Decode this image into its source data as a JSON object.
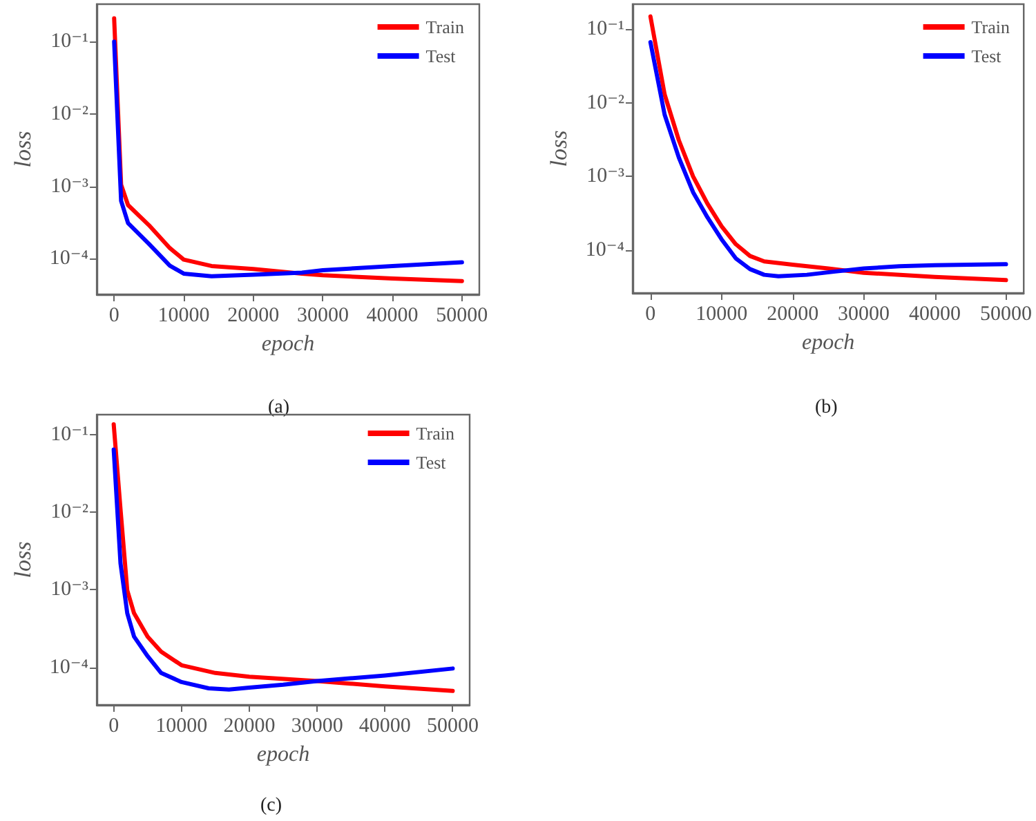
{
  "chart_data": [
    {
      "type": "line",
      "xlabel": "epoch",
      "ylabel": "loss",
      "annotations": [
        "(a)"
      ],
      "log": "y",
      "grid": false,
      "legend": "top right",
      "line_style": "solid",
      "marker": "none",
      "xlim": [
        -2500,
        52500
      ],
      "xticks": [
        0,
        10000,
        20000,
        30000,
        40000,
        50000
      ],
      "ylim": [
        3.2e-05,
        0.33
      ],
      "yticks": [
        {
          "value": 0.1,
          "label": "10⁻¹"
        },
        {
          "value": 0.01,
          "label": "10⁻²"
        },
        {
          "value": 0.001,
          "label": "10⁻³"
        },
        {
          "value": 0.0001,
          "label": "10⁻⁴"
        }
      ],
      "series": [
        {
          "name": "Train",
          "color": "#ff0000",
          "x": [
            0,
            1000,
            2000,
            5000,
            8000,
            10000,
            14000,
            20000,
            27000,
            30000,
            40000,
            50000
          ],
          "values": [
            0.21,
            0.00105,
            0.00055,
            0.00029,
            0.00014,
            9.7e-05,
            7.9e-05,
            7.2e-05,
            6.2e-05,
            5.9e-05,
            5.3e-05,
            4.9e-05
          ]
        },
        {
          "name": "Test",
          "color": "#0000ff",
          "x": [
            0,
            1000,
            2000,
            5000,
            8000,
            10000,
            14000,
            20000,
            27000,
            30000,
            40000,
            50000
          ],
          "values": [
            0.1,
            0.00063,
            0.00031,
            0.00016,
            8e-05,
            6.2e-05,
            5.7e-05,
            6e-05,
            6.4e-05,
            6.9e-05,
            7.9e-05,
            8.9e-05
          ]
        }
      ]
    },
    {
      "type": "line",
      "xlabel": "epoch",
      "ylabel": "loss",
      "annotations": [
        "(b)"
      ],
      "log": "y",
      "grid": false,
      "legend": "top right",
      "line_style": "solid",
      "marker": "none",
      "xlim": [
        -2500,
        52500
      ],
      "xticks": [
        0,
        10000,
        20000,
        30000,
        40000,
        50000
      ],
      "ylim": [
        2.6e-05,
        0.22
      ],
      "yticks": [
        {
          "value": 0.1,
          "label": "10⁻¹"
        },
        {
          "value": 0.01,
          "label": "10⁻²"
        },
        {
          "value": 0.001,
          "label": "10⁻³"
        },
        {
          "value": 0.0001,
          "label": "10⁻⁴"
        }
      ],
      "series": [
        {
          "name": "Train",
          "color": "#ff0000",
          "x": [
            0,
            2000,
            4000,
            6000,
            8000,
            10000,
            12000,
            14000,
            16000,
            20000,
            25000,
            30000,
            40000,
            50000
          ],
          "values": [
            0.15,
            0.013,
            0.0031,
            0.001,
            0.00043,
            0.00021,
            0.00012,
            8.3e-05,
            7e-05,
            6.3e-05,
            5.6e-05,
            4.9e-05,
            4.3e-05,
            3.9e-05
          ]
        },
        {
          "name": "Test",
          "color": "#0000ff",
          "x": [
            0,
            2000,
            4000,
            6000,
            8000,
            10000,
            12000,
            14000,
            16000,
            18000,
            22000,
            26000,
            30000,
            35000,
            40000,
            50000
          ],
          "values": [
            0.067,
            0.0069,
            0.0018,
            0.00061,
            0.00028,
            0.00014,
            7.7e-05,
            5.5e-05,
            4.6e-05,
            4.4e-05,
            4.6e-05,
            5.1e-05,
            5.6e-05,
            6e-05,
            6.2e-05,
            6.4e-05
          ]
        }
      ]
    },
    {
      "type": "line",
      "xlabel": "epoch",
      "ylabel": "loss",
      "annotations": [
        "(c)"
      ],
      "log": "y",
      "grid": false,
      "legend": "top right",
      "line_style": "solid",
      "marker": "none",
      "xlim": [
        -2500,
        52500
      ],
      "xticks": [
        0,
        10000,
        20000,
        30000,
        40000,
        50000
      ],
      "ylim": [
        3.3e-05,
        0.18
      ],
      "yticks": [
        {
          "value": 0.1,
          "label": "10⁻¹"
        },
        {
          "value": 0.01,
          "label": "10⁻²"
        },
        {
          "value": 0.001,
          "label": "10⁻³"
        },
        {
          "value": 0.0001,
          "label": "10⁻⁴"
        }
      ],
      "series": [
        {
          "name": "Train",
          "color": "#ff0000",
          "x": [
            0,
            1000,
            2000,
            3000,
            5000,
            7000,
            10000,
            15000,
            20000,
            30000,
            40000,
            50000
          ],
          "values": [
            0.135,
            0.011,
            0.00098,
            0.0005,
            0.00025,
            0.00016,
            0.000107,
            8.5e-05,
            7.6e-05,
            6.7e-05,
            5.7e-05,
            5e-05
          ]
        },
        {
          "name": "Test",
          "color": "#0000ff",
          "x": [
            0,
            1000,
            2000,
            3000,
            5000,
            7000,
            10000,
            14000,
            17000,
            20000,
            25000,
            30000,
            40000,
            50000
          ],
          "values": [
            0.064,
            0.0022,
            0.0005,
            0.00025,
            0.00014,
            8.5e-05,
            6.5e-05,
            5.4e-05,
            5.2e-05,
            5.5e-05,
            6e-05,
            6.7e-05,
            7.9e-05,
            9.7e-05
          ]
        }
      ]
    }
  ]
}
